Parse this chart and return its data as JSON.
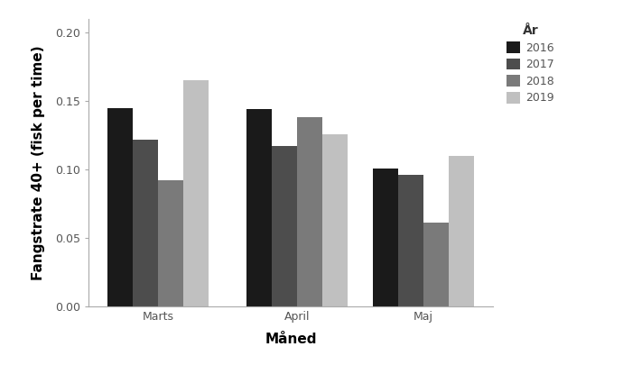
{
  "months": [
    "Marts",
    "April",
    "Maj"
  ],
  "years": [
    "2016",
    "2017",
    "2018",
    "2019"
  ],
  "values": {
    "Marts": [
      0.145,
      0.122,
      0.092,
      0.165
    ],
    "April": [
      0.144,
      0.117,
      0.138,
      0.126
    ],
    "Maj": [
      0.101,
      0.096,
      0.061,
      0.11
    ]
  },
  "colors": {
    "2016": "#1a1a1a",
    "2017": "#4d4d4d",
    "2018": "#7a7a7a",
    "2019": "#c0c0c0"
  },
  "xlabel": "Måned",
  "ylabel": "Fangstrate 40+ (fisk per time)",
  "legend_title": "År",
  "ylim": [
    0,
    0.21
  ],
  "yticks": [
    0.0,
    0.05,
    0.1,
    0.15,
    0.2
  ],
  "bar_width": 0.2,
  "background_color": "#ffffff",
  "axis_label_fontsize": 11,
  "tick_fontsize": 9,
  "legend_fontsize": 9
}
